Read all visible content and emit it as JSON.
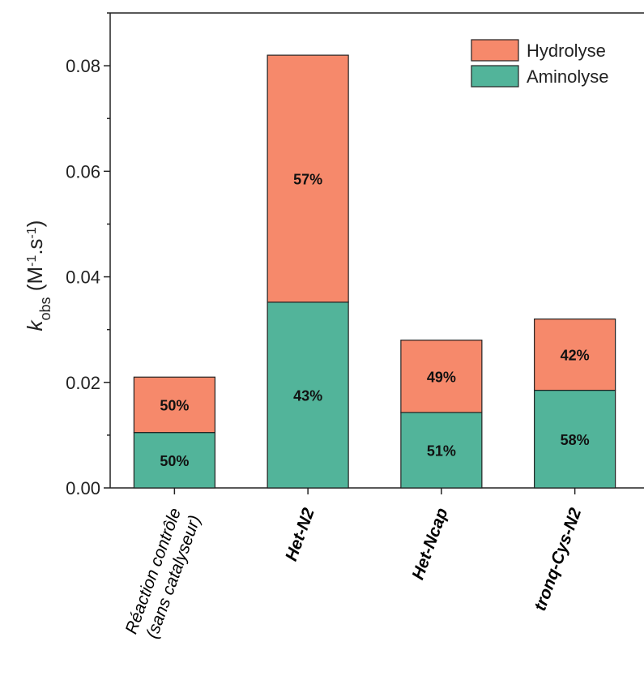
{
  "chart_data": {
    "type": "bar",
    "stacked": true,
    "categories": [
      "Réaction contrôle (sans catalyseur)",
      "Het-N2",
      "Het-Ncap",
      "tronq-Cys-N2"
    ],
    "category_lines": [
      [
        "Réaction contrôle",
        "(sans catalyseur)"
      ],
      [
        "Het-N2"
      ],
      [
        "Het-Ncap"
      ],
      [
        "tronq-Cys-N2"
      ]
    ],
    "category_bold": [
      false,
      true,
      true,
      true
    ],
    "series": [
      {
        "name": "Aminolyse",
        "color": "#52b49a",
        "values": [
          0.0105,
          0.0352,
          0.0143,
          0.0185
        ],
        "labels": [
          "50%",
          "43%",
          "51%",
          "58%"
        ]
      },
      {
        "name": "Hydrolyse",
        "color": "#f6896b",
        "values": [
          0.0105,
          0.0468,
          0.0137,
          0.0135
        ],
        "labels": [
          "50%",
          "57%",
          "49%",
          "42%"
        ]
      }
    ],
    "ylabel": {
      "main": "k",
      "sub": "obs",
      "units_open": " (M",
      "sup1": "-1",
      "units_mid": ".s",
      "sup2": "-1",
      "units_close": ")"
    },
    "ylim": [
      0,
      0.09
    ],
    "yticks": [
      "0.00",
      "0.02",
      "0.04",
      "0.06",
      "0.08"
    ],
    "ytick_values": [
      0,
      0.02,
      0.04,
      0.06,
      0.08
    ],
    "legend": {
      "position": "top-right",
      "entries": [
        {
          "label": "Hydrolyse",
          "color": "#f6896b"
        },
        {
          "label": "Aminolyse",
          "color": "#52b49a"
        }
      ]
    },
    "grid": false
  }
}
